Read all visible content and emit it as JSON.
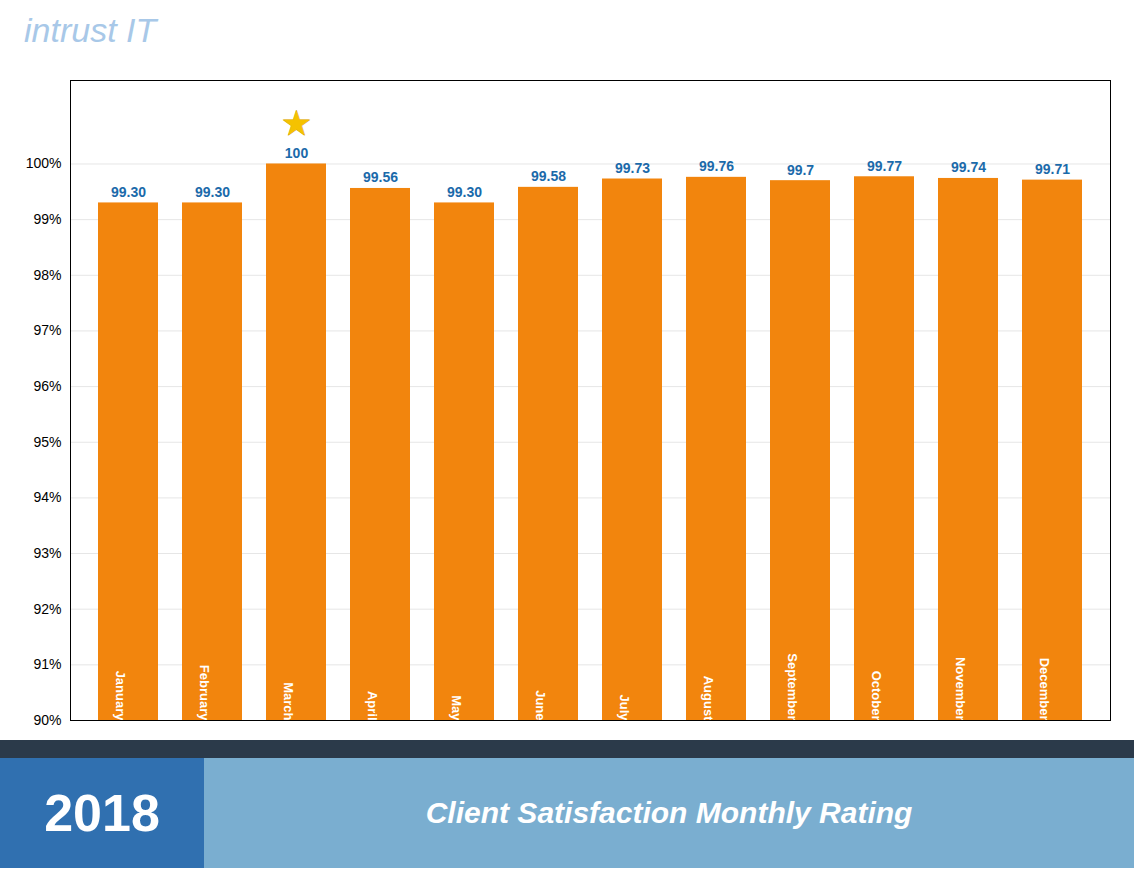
{
  "chart_data": {
    "type": "bar",
    "title": "Client Satisfaction Monthly Rating",
    "subtitle": "2018",
    "categories": [
      "January",
      "February",
      "March",
      "April",
      "May",
      "June",
      "July",
      "August",
      "September",
      "October",
      "November",
      "December"
    ],
    "values": [
      99.3,
      99.3,
      100.0,
      99.56,
      99.3,
      99.58,
      99.73,
      99.76,
      99.7,
      99.77,
      99.74,
      99.71
    ],
    "value_labels": [
      "99.30",
      "99.30",
      "100",
      "99.56",
      "99.30",
      "99.58",
      "99.73",
      "99.76",
      "99.7",
      "99.77",
      "99.74",
      "99.71"
    ],
    "data_labels": true,
    "color": "#F2850D",
    "ylim": [
      90,
      101.5
    ],
    "yticks": [
      {
        "value": 90,
        "label": "90%"
      },
      {
        "value": 91,
        "label": "91%"
      },
      {
        "value": 92,
        "label": "92%"
      },
      {
        "value": 93,
        "label": "93%"
      },
      {
        "value": 94,
        "label": "94%"
      },
      {
        "value": 95,
        "label": "95%"
      },
      {
        "value": 96,
        "label": "96%"
      },
      {
        "value": 97,
        "label": "97%"
      },
      {
        "value": 98,
        "label": "98%"
      },
      {
        "value": 99,
        "label": "99%"
      },
      {
        "value": 100,
        "label": "100%"
      }
    ],
    "grid": true,
    "tick_labels": "y",
    "annotations": [
      {
        "text": "intrust IT"
      },
      {
        "text": "★",
        "category": "March"
      }
    ]
  }
}
